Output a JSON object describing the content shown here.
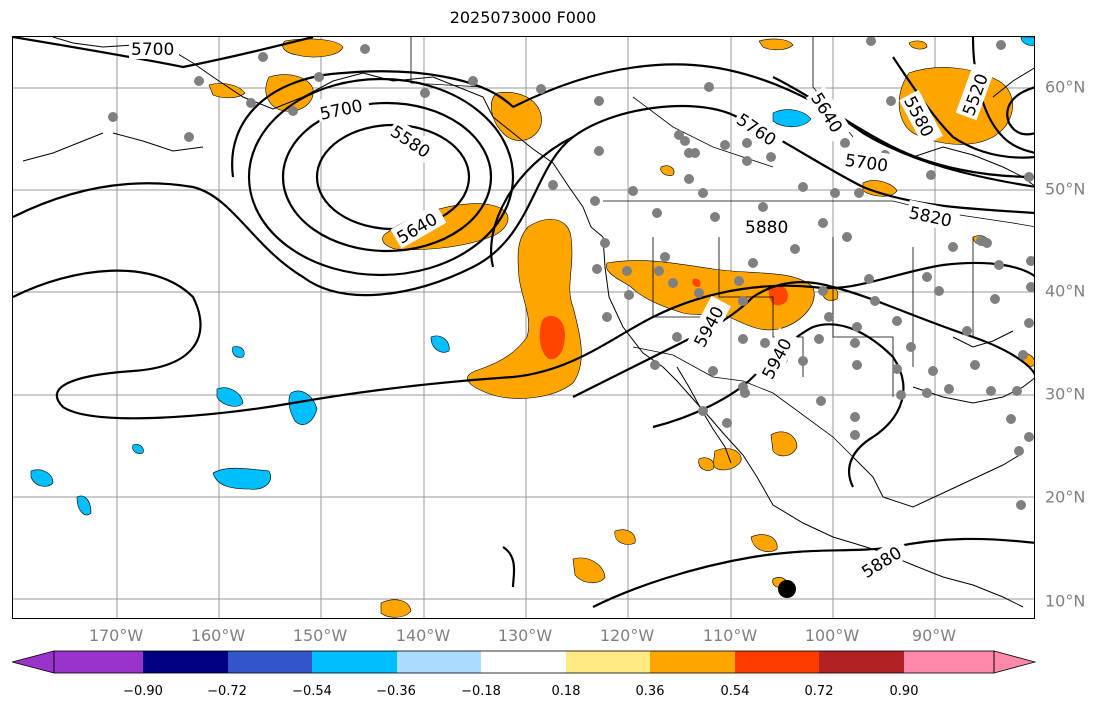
{
  "title": "2025073000 F000",
  "lat_labels": [
    "10°N",
    "20°N",
    "30°N",
    "40°N",
    "50°N",
    "60°N"
  ],
  "lon_labels": [
    "170°W",
    "160°W",
    "150°W",
    "140°W",
    "130°W",
    "120°W",
    "110°W",
    "100°W",
    "90°W"
  ],
  "contour_labels": [
    "5700",
    "5700",
    "5580",
    "5640",
    "5760",
    "5640",
    "5580",
    "5520",
    "5700",
    "5820",
    "5880",
    "5940",
    "5940",
    "5880"
  ],
  "colorbar": {
    "ticks": [
      "−0.90",
      "−0.72",
      "−0.54",
      "−0.36",
      "−0.18",
      "0.18",
      "0.36",
      "0.54",
      "0.72",
      "0.90"
    ],
    "colors": [
      "#9933cc",
      "#000080",
      "#3355cc",
      "#00bfff",
      "#aadcff",
      "#ffffff",
      "#ffea84",
      "#ffa500",
      "#ff3c00",
      "#b22222",
      "#ff88aa",
      "#ff88aa"
    ]
  },
  "colors": {
    "frame": "#000000",
    "grid": "#999999",
    "station": "#808080",
    "positive": "#ffa500",
    "strong_positive": "#ff4500",
    "negative": "#00bfff"
  }
}
